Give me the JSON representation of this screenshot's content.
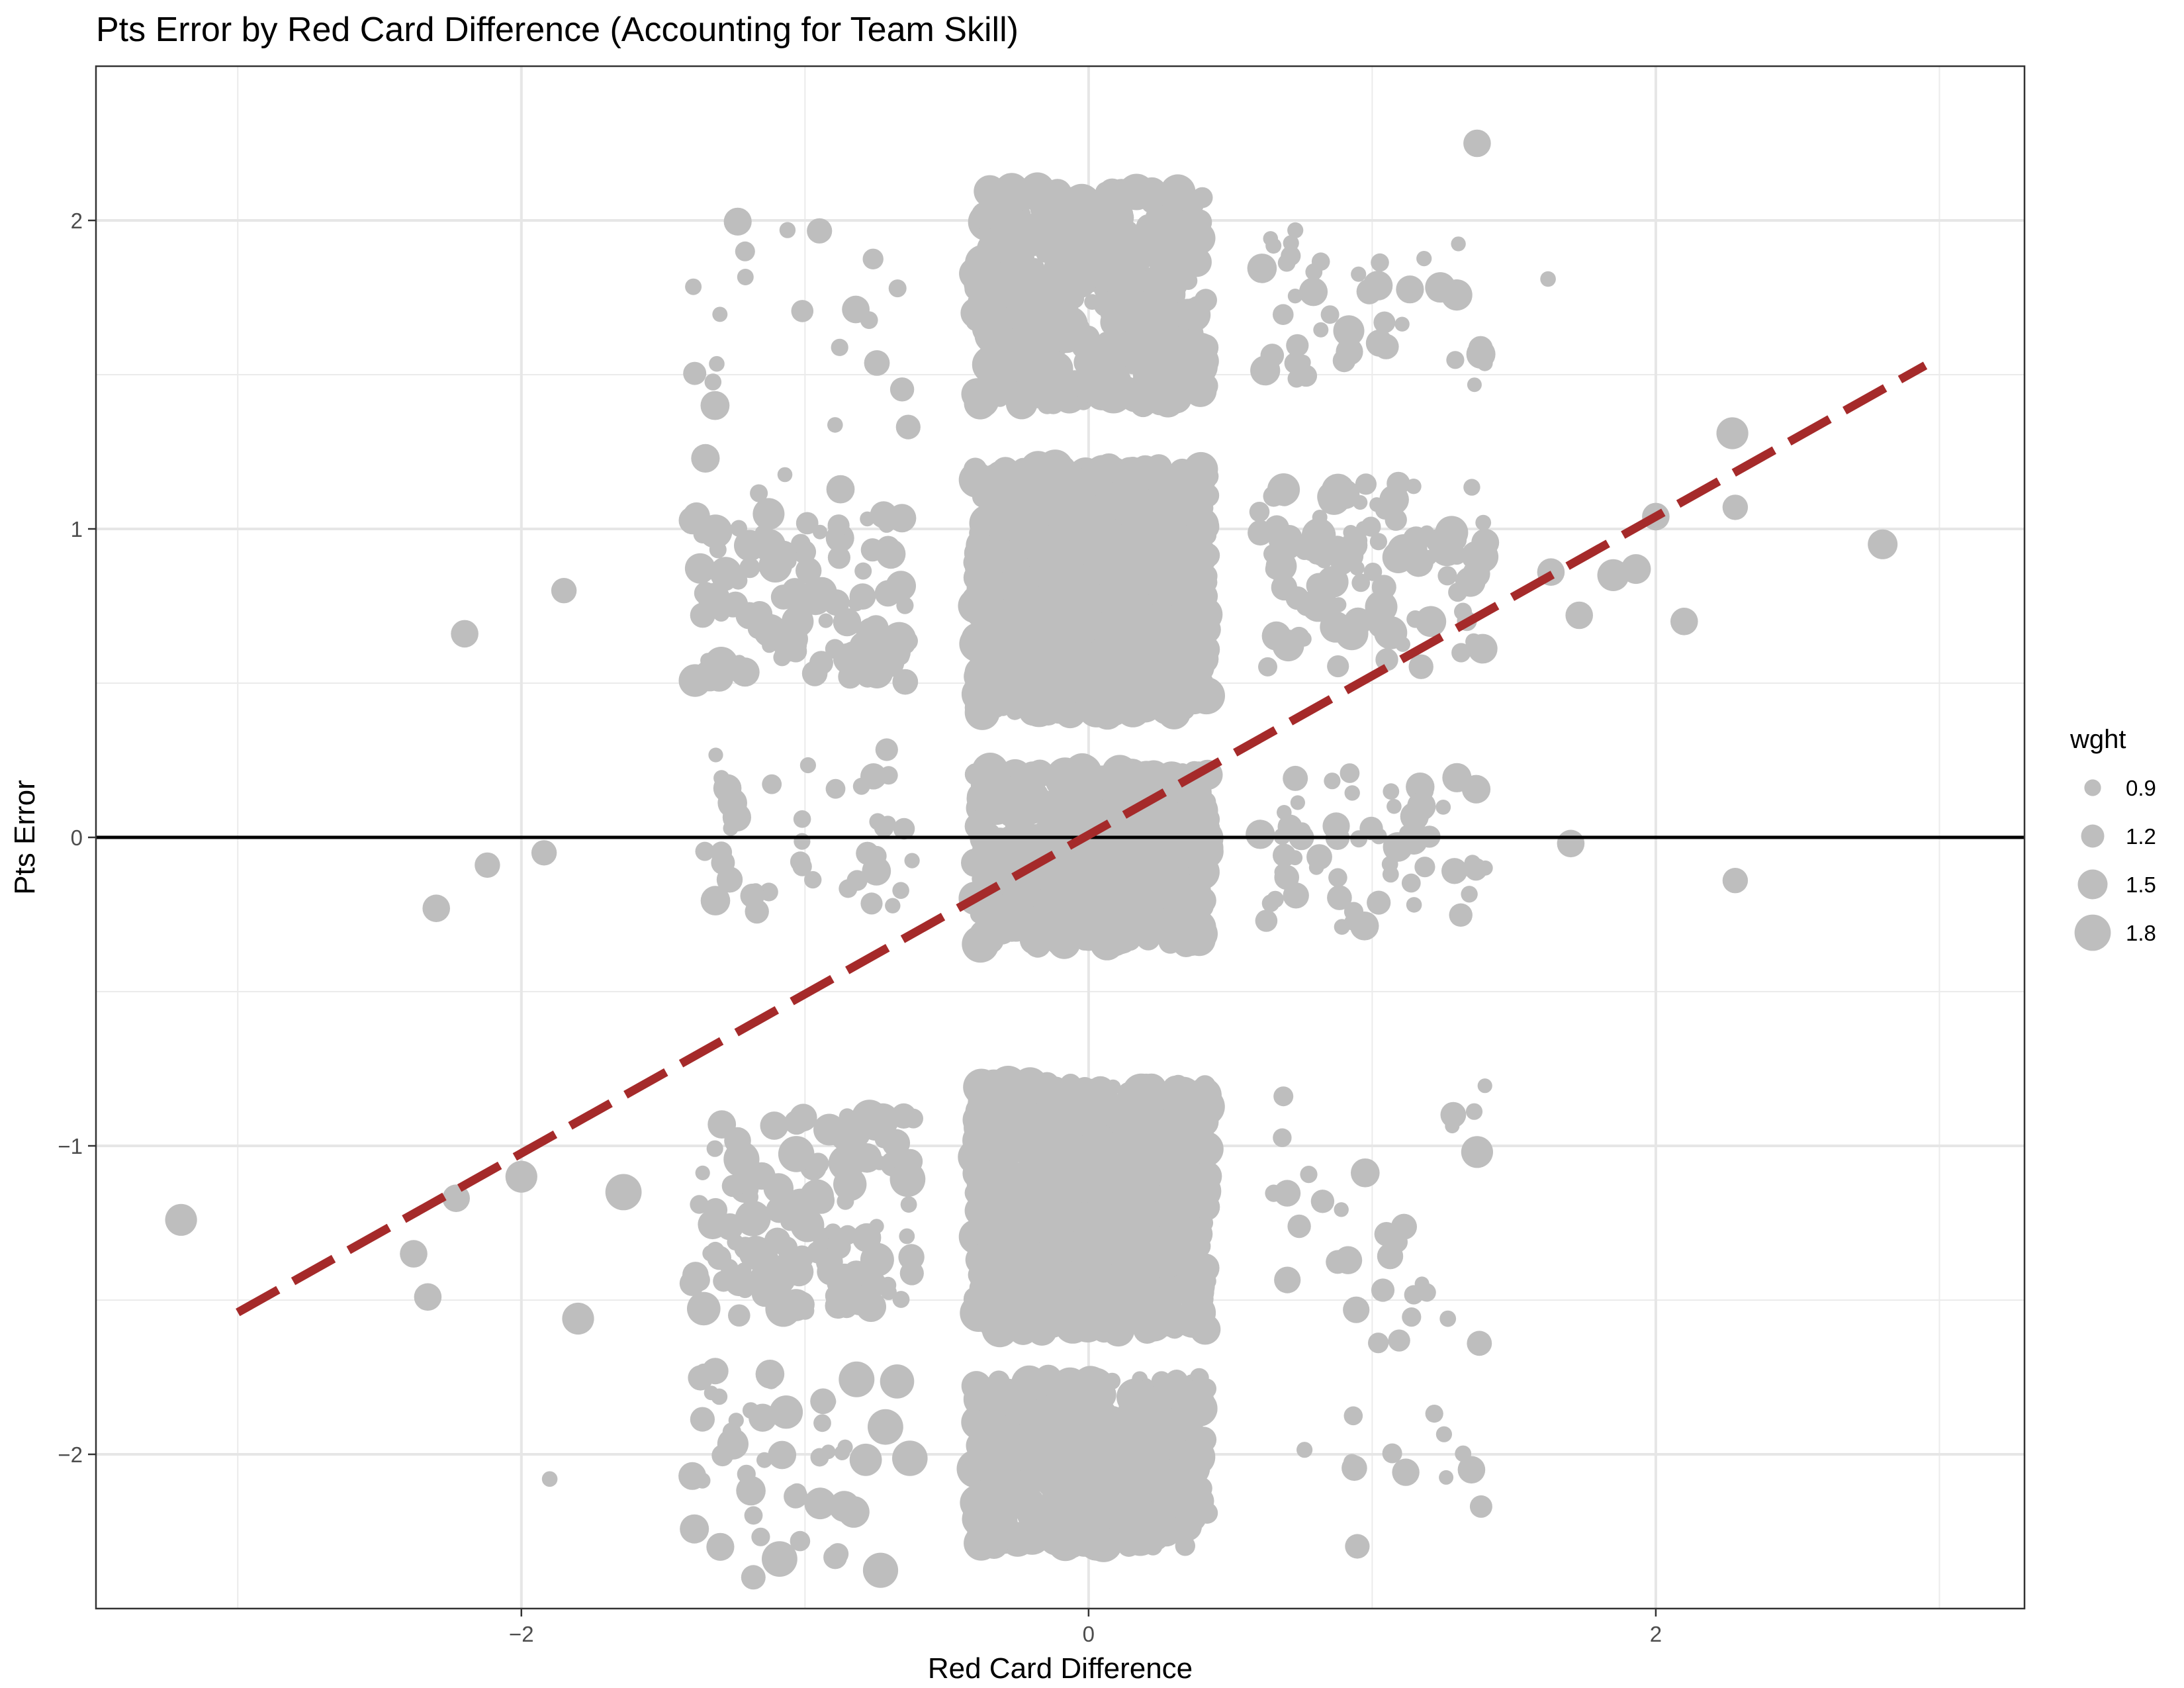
{
  "chart_data": {
    "type": "scatter",
    "title": "Pts Error by Red Card Difference (Accounting for Team Skill)",
    "xlabel": "Red Card Difference",
    "ylabel": "Pts Error",
    "xlim": [
      -3.5,
      3.3
    ],
    "ylim": [
      -2.5,
      2.5
    ],
    "x_ticks": [
      -2,
      0,
      2
    ],
    "x_tick_labels": [
      "−2",
      "0",
      "2"
    ],
    "y_ticks": [
      -2,
      -1,
      0,
      1,
      2
    ],
    "y_tick_labels": [
      "−2",
      "−1",
      "0",
      "1",
      "2"
    ],
    "grid": true,
    "point_color": "#bebebe",
    "reference_line": {
      "y": 0,
      "color": "#000000"
    },
    "fit_line": {
      "type": "dashed",
      "color": "#a52a2a",
      "x": [
        -3,
        2.95
      ],
      "y": [
        -1.54,
        1.53
      ]
    },
    "legend": {
      "title": "wght",
      "placement": "right",
      "entries": [
        {
          "label": "0.9",
          "value": 0.9
        },
        {
          "label": "1.2",
          "value": 1.2
        },
        {
          "label": "1.5",
          "value": 1.5
        },
        {
          "label": "1.8",
          "value": 1.8
        }
      ]
    },
    "size_range": [
      0.8,
      1.9
    ],
    "clusters": [
      {
        "x": [
          -0.4,
          0.42
        ],
        "y": [
          0.4,
          1.2
        ],
        "n": 950,
        "w": [
          0.85,
          1.9
        ]
      },
      {
        "x": [
          -0.4,
          0.42
        ],
        "y": [
          -1.6,
          -0.8
        ],
        "n": 750,
        "w": [
          0.85,
          1.9
        ]
      },
      {
        "x": [
          -0.4,
          0.42
        ],
        "y": [
          -0.35,
          0.22
        ],
        "n": 600,
        "w": [
          0.85,
          1.9
        ]
      },
      {
        "x": [
          -0.4,
          0.42
        ],
        "y": [
          1.4,
          2.1
        ],
        "n": 420,
        "w": [
          0.85,
          1.9
        ]
      },
      {
        "x": [
          -0.4,
          0.42
        ],
        "y": [
          -2.3,
          -1.75
        ],
        "n": 380,
        "w": [
          0.85,
          1.9
        ]
      },
      {
        "x": [
          -1.4,
          -0.6
        ],
        "y": [
          0.5,
          1.05
        ],
        "n": 110,
        "w": [
          0.8,
          1.7
        ]
      },
      {
        "x": [
          -1.4,
          -0.6
        ],
        "y": [
          -1.55,
          -0.9
        ],
        "n": 120,
        "w": [
          0.8,
          1.8
        ]
      },
      {
        "x": [
          -1.4,
          -0.6
        ],
        "y": [
          -0.25,
          0.3
        ],
        "n": 40,
        "w": [
          0.8,
          1.5
        ]
      },
      {
        "x": [
          -1.4,
          -0.6
        ],
        "y": [
          1.1,
          2.0
        ],
        "n": 25,
        "w": [
          0.8,
          1.5
        ]
      },
      {
        "x": [
          -1.4,
          -0.6
        ],
        "y": [
          -2.4,
          -1.7
        ],
        "n": 50,
        "w": [
          0.8,
          1.8
        ]
      },
      {
        "x": [
          0.6,
          1.4
        ],
        "y": [
          0.55,
          1.15
        ],
        "n": 110,
        "w": [
          0.8,
          1.7
        ]
      },
      {
        "x": [
          0.6,
          1.4
        ],
        "y": [
          -0.3,
          0.22
        ],
        "n": 60,
        "w": [
          0.8,
          1.5
        ]
      },
      {
        "x": [
          0.6,
          1.4
        ],
        "y": [
          1.4,
          2.0
        ],
        "n": 45,
        "w": [
          0.8,
          1.6
        ]
      },
      {
        "x": [
          0.6,
          1.4
        ],
        "y": [
          -1.65,
          -0.75
        ],
        "n": 30,
        "w": [
          0.8,
          1.5
        ]
      },
      {
        "x": [
          0.6,
          1.4
        ],
        "y": [
          -2.3,
          -1.8
        ],
        "n": 12,
        "w": [
          0.8,
          1.4
        ]
      }
    ],
    "outliers": [
      {
        "x": -3.2,
        "y": -1.24,
        "w": 1.6
      },
      {
        "x": -2.2,
        "y": 0.66,
        "w": 1.4
      },
      {
        "x": -2.3,
        "y": -0.23,
        "w": 1.4
      },
      {
        "x": -2.12,
        "y": -0.09,
        "w": 1.3
      },
      {
        "x": -1.92,
        "y": -0.05,
        "w": 1.3
      },
      {
        "x": -1.85,
        "y": 0.8,
        "w": 1.3
      },
      {
        "x": -2.0,
        "y": -1.1,
        "w": 1.6
      },
      {
        "x": -1.64,
        "y": -1.15,
        "w": 1.8
      },
      {
        "x": -1.8,
        "y": -1.56,
        "w": 1.6
      },
      {
        "x": -2.33,
        "y": -1.49,
        "w": 1.4
      },
      {
        "x": -2.38,
        "y": -1.35,
        "w": 1.4
      },
      {
        "x": -2.23,
        "y": -1.17,
        "w": 1.4
      },
      {
        "x": 1.63,
        "y": 0.86,
        "w": 1.4
      },
      {
        "x": 1.73,
        "y": 0.72,
        "w": 1.4
      },
      {
        "x": 1.7,
        "y": -0.02,
        "w": 1.4
      },
      {
        "x": 1.85,
        "y": 0.85,
        "w": 1.6
      },
      {
        "x": 1.93,
        "y": 0.87,
        "w": 1.5
      },
      {
        "x": 2.0,
        "y": 1.04,
        "w": 1.4
      },
      {
        "x": 2.1,
        "y": 0.7,
        "w": 1.4
      },
      {
        "x": 2.27,
        "y": 1.31,
        "w": 1.6
      },
      {
        "x": 2.28,
        "y": 1.07,
        "w": 1.3
      },
      {
        "x": 2.28,
        "y": -0.14,
        "w": 1.3
      },
      {
        "x": 2.8,
        "y": 0.95,
        "w": 1.5
      },
      {
        "x": 1.37,
        "y": 2.25,
        "w": 1.4
      },
      {
        "x": 1.62,
        "y": 1.81,
        "w": 0.85
      },
      {
        "x": 1.35,
        "y": -2.05,
        "w": 1.4
      },
      {
        "x": 1.37,
        "y": -1.02,
        "w": 1.6
      },
      {
        "x": -1.9,
        "y": -2.08,
        "w": 0.85
      }
    ]
  }
}
